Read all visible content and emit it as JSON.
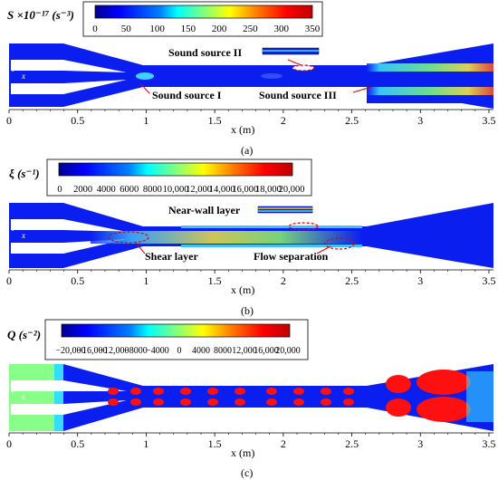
{
  "colors": {
    "jet": [
      "#00008f",
      "#0000ff",
      "#0080ff",
      "#00ffff",
      "#7fff7f",
      "#ffff00",
      "#ff8000",
      "#ff0000",
      "#bf0000"
    ],
    "field_blue": "#0a1ef0",
    "annotation_red": "#e00000",
    "wall_grey": "#d0d0d0"
  },
  "panels": [
    {
      "id": "a",
      "caption": "(a)",
      "colorbar_label": "S ×10⁻¹⁷ (s⁻³)",
      "colorbar_ticks": [
        "0",
        "50",
        "100",
        "150",
        "200",
        "250",
        "300",
        "350"
      ],
      "annotations": [
        "Sound source II",
        "Sound source I",
        "Sound source III"
      ]
    },
    {
      "id": "b",
      "caption": "(b)",
      "colorbar_label": "ξ (s⁻¹)",
      "colorbar_ticks": [
        "0",
        "2000",
        "4000",
        "6000",
        "8000",
        "10,000",
        "12,000",
        "14,000",
        "16,000",
        "18,000",
        "20,000"
      ],
      "annotations": [
        "Near-wall layer",
        "Shear layer",
        "Flow separation"
      ]
    },
    {
      "id": "c",
      "caption": "(c)",
      "colorbar_label": "Q (s⁻²)",
      "colorbar_ticks": [
        "−20,000",
        "−16,000",
        "−12,000",
        "−8000",
        "−4000",
        "0",
        "4000",
        "8000",
        "12,000",
        "16,000",
        "20,000"
      ],
      "annotations": []
    }
  ],
  "axis": {
    "xlabel": "x (m)",
    "ticks": [
      "0",
      "0.5",
      "1",
      "1.5",
      "2",
      "2.5",
      "3",
      "3.5"
    ],
    "axis_y": "y",
    "axis_x": "x"
  }
}
